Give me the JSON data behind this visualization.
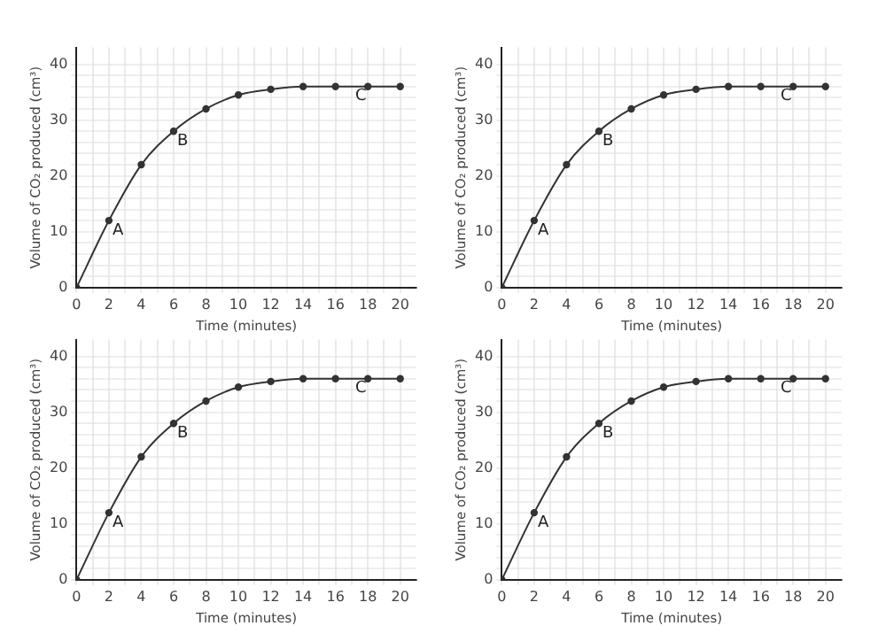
{
  "chart_data": [
    {
      "type": "line",
      "xlabel": "Time (minutes)",
      "ylabel": "Volume of CO₂ produced (cm³)",
      "x": [
        0,
        2,
        4,
        6,
        8,
        10,
        12,
        14,
        16,
        18,
        20
      ],
      "values": [
        0,
        12,
        22,
        28,
        32,
        34.5,
        35.5,
        36,
        36,
        36,
        36
      ],
      "color": "#333333",
      "marker": "circle",
      "line_style": "solid",
      "grid": true,
      "legend": false,
      "xlim": [
        0,
        21
      ],
      "ylim": [
        0,
        43
      ],
      "xticks": [
        0,
        {
          "value": 1,
          "label": null
        },
        2,
        {
          "value": 3,
          "label": null
        },
        4,
        {
          "value": 5,
          "label": null
        },
        6,
        {
          "value": 7,
          "label": null
        },
        8,
        {
          "value": 9,
          "label": null
        },
        10,
        {
          "value": 11,
          "label": null
        },
        12,
        {
          "value": 13,
          "label": null
        },
        14,
        {
          "value": 15,
          "label": null
        },
        16,
        {
          "value": 17,
          "label": null
        },
        18,
        {
          "value": 19,
          "label": null
        },
        20
      ],
      "yticks": [
        0,
        {
          "value": 2,
          "label": null
        },
        {
          "value": 4,
          "label": null
        },
        {
          "value": 6,
          "label": null
        },
        {
          "value": 8,
          "label": null
        },
        10,
        {
          "value": 12,
          "label": null
        },
        {
          "value": 14,
          "label": null
        },
        {
          "value": 16,
          "label": null
        },
        {
          "value": 18,
          "label": null
        },
        20,
        {
          "value": 22,
          "label": null
        },
        {
          "value": 24,
          "label": null
        },
        {
          "value": 26,
          "label": null
        },
        {
          "value": 28,
          "label": null
        },
        30,
        {
          "value": 32,
          "label": null
        },
        {
          "value": 34,
          "label": null
        },
        {
          "value": 36,
          "label": null
        },
        {
          "value": 38,
          "label": null
        },
        40
      ],
      "annotations": [
        {
          "text": "A",
          "x": 2,
          "y": 12
        },
        {
          "text": "B",
          "x": 6,
          "y": 28
        },
        {
          "text": "C",
          "x": 17,
          "y": 36
        }
      ]
    },
    {
      "type": "line",
      "xlabel": "Time (minutes)",
      "ylabel": "Volume of CO₂ produced (cm³)",
      "x": [
        0,
        2,
        4,
        6,
        8,
        10,
        12,
        14,
        16,
        18,
        20
      ],
      "values": [
        0,
        12,
        22,
        28,
        32,
        34.5,
        35.5,
        36,
        36,
        36,
        36
      ],
      "color": "#333333",
      "marker": "circle",
      "line_style": "solid",
      "grid": true,
      "legend": false,
      "xlim": [
        0,
        21
      ],
      "ylim": [
        0,
        43
      ],
      "xticks": [
        0,
        {
          "value": 1,
          "label": null
        },
        2,
        {
          "value": 3,
          "label": null
        },
        4,
        {
          "value": 5,
          "label": null
        },
        6,
        {
          "value": 7,
          "label": null
        },
        8,
        {
          "value": 9,
          "label": null
        },
        10,
        {
          "value": 11,
          "label": null
        },
        12,
        {
          "value": 13,
          "label": null
        },
        14,
        {
          "value": 15,
          "label": null
        },
        16,
        {
          "value": 17,
          "label": null
        },
        18,
        {
          "value": 19,
          "label": null
        },
        20
      ],
      "yticks": [
        0,
        {
          "value": 2,
          "label": null
        },
        {
          "value": 4,
          "label": null
        },
        {
          "value": 6,
          "label": null
        },
        {
          "value": 8,
          "label": null
        },
        10,
        {
          "value": 12,
          "label": null
        },
        {
          "value": 14,
          "label": null
        },
        {
          "value": 16,
          "label": null
        },
        {
          "value": 18,
          "label": null
        },
        20,
        {
          "value": 22,
          "label": null
        },
        {
          "value": 24,
          "label": null
        },
        {
          "value": 26,
          "label": null
        },
        {
          "value": 28,
          "label": null
        },
        30,
        {
          "value": 32,
          "label": null
        },
        {
          "value": 34,
          "label": null
        },
        {
          "value": 36,
          "label": null
        },
        {
          "value": 38,
          "label": null
        },
        40
      ],
      "annotations": [
        {
          "text": "A",
          "x": 2,
          "y": 12
        },
        {
          "text": "B",
          "x": 6,
          "y": 28
        },
        {
          "text": "C",
          "x": 17,
          "y": 36
        }
      ]
    },
    {
      "type": "line",
      "xlabel": "Time (minutes)",
      "ylabel": "Volume of CO₂ produced (cm³)",
      "x": [
        0,
        2,
        4,
        6,
        8,
        10,
        12,
        14,
        16,
        18,
        20
      ],
      "values": [
        0,
        12,
        22,
        28,
        32,
        34.5,
        35.5,
        36,
        36,
        36,
        36
      ],
      "color": "#333333",
      "marker": "circle",
      "line_style": "solid",
      "grid": true,
      "legend": false,
      "xlim": [
        0,
        21
      ],
      "ylim": [
        0,
        43
      ],
      "xticks": [
        0,
        {
          "value": 1,
          "label": null
        },
        2,
        {
          "value": 3,
          "label": null
        },
        4,
        {
          "value": 5,
          "label": null
        },
        6,
        {
          "value": 7,
          "label": null
        },
        8,
        {
          "value": 9,
          "label": null
        },
        10,
        {
          "value": 11,
          "label": null
        },
        12,
        {
          "value": 13,
          "label": null
        },
        14,
        {
          "value": 15,
          "label": null
        },
        16,
        {
          "value": 17,
          "label": null
        },
        18,
        {
          "value": 19,
          "label": null
        },
        20
      ],
      "yticks": [
        0,
        {
          "value": 2,
          "label": null
        },
        {
          "value": 4,
          "label": null
        },
        {
          "value": 6,
          "label": null
        },
        {
          "value": 8,
          "label": null
        },
        10,
        {
          "value": 12,
          "label": null
        },
        {
          "value": 14,
          "label": null
        },
        {
          "value": 16,
          "label": null
        },
        {
          "value": 18,
          "label": null
        },
        20,
        {
          "value": 22,
          "label": null
        },
        {
          "value": 24,
          "label": null
        },
        {
          "value": 26,
          "label": null
        },
        {
          "value": 28,
          "label": null
        },
        30,
        {
          "value": 32,
          "label": null
        },
        {
          "value": 34,
          "label": null
        },
        {
          "value": 36,
          "label": null
        },
        {
          "value": 38,
          "label": null
        },
        40
      ],
      "annotations": [
        {
          "text": "A",
          "x": 2,
          "y": 12
        },
        {
          "text": "B",
          "x": 6,
          "y": 28
        },
        {
          "text": "C",
          "x": 17,
          "y": 36
        }
      ]
    },
    {
      "type": "line",
      "xlabel": "Time (minutes)",
      "ylabel": "Volume of CO₂ produced (cm³)",
      "x": [
        0,
        2,
        4,
        6,
        8,
        10,
        12,
        14,
        16,
        18,
        20
      ],
      "values": [
        0,
        12,
        22,
        28,
        32,
        34.5,
        35.5,
        36,
        36,
        36,
        36
      ],
      "color": "#333333",
      "marker": "circle",
      "line_style": "solid",
      "grid": true,
      "legend": false,
      "xlim": [
        0,
        21
      ],
      "ylim": [
        0,
        43
      ],
      "xticks": [
        0,
        {
          "value": 1,
          "label": null
        },
        2,
        {
          "value": 3,
          "label": null
        },
        4,
        {
          "value": 5,
          "label": null
        },
        6,
        {
          "value": 7,
          "label": null
        },
        8,
        {
          "value": 9,
          "label": null
        },
        10,
        {
          "value": 11,
          "label": null
        },
        12,
        {
          "value": 13,
          "label": null
        },
        14,
        {
          "value": 15,
          "label": null
        },
        16,
        {
          "value": 17,
          "label": null
        },
        18,
        {
          "value": 19,
          "label": null
        },
        20
      ],
      "yticks": [
        0,
        {
          "value": 2,
          "label": null
        },
        {
          "value": 4,
          "label": null
        },
        {
          "value": 6,
          "label": null
        },
        {
          "value": 8,
          "label": null
        },
        10,
        {
          "value": 12,
          "label": null
        },
        {
          "value": 14,
          "label": null
        },
        {
          "value": 16,
          "label": null
        },
        {
          "value": 18,
          "label": null
        },
        20,
        {
          "value": 22,
          "label": null
        },
        {
          "value": 24,
          "label": null
        },
        {
          "value": 26,
          "label": null
        },
        {
          "value": 28,
          "label": null
        },
        30,
        {
          "value": 32,
          "label": null
        },
        {
          "value": 34,
          "label": null
        },
        {
          "value": 36,
          "label": null
        },
        {
          "value": 38,
          "label": null
        },
        40
      ],
      "annotations": [
        {
          "text": "A",
          "x": 2,
          "y": 12
        },
        {
          "text": "B",
          "x": 6,
          "y": 28
        },
        {
          "text": "C",
          "x": 17,
          "y": 36
        }
      ]
    }
  ]
}
